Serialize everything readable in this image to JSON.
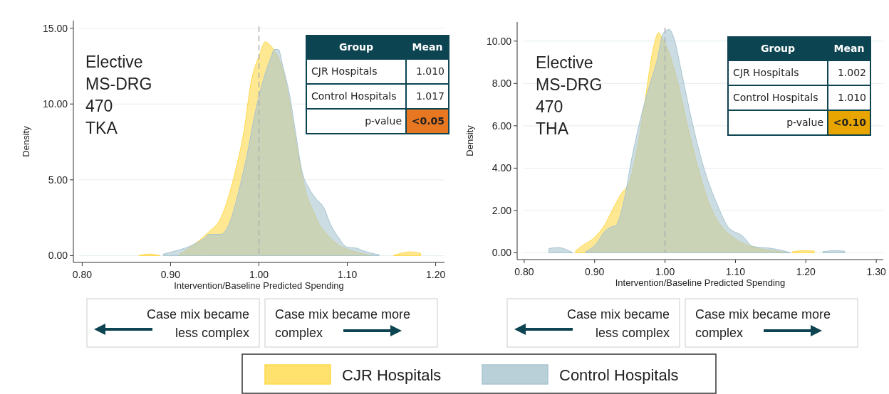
{
  "chart_data": [
    {
      "type": "area",
      "xlabel": "Intervention/Baseline Predicted Spending",
      "ylabel": "Density",
      "xlim": [
        0.79,
        1.21
      ],
      "ylim": [
        -0.45,
        15.5
      ],
      "xticks": [
        {
          "value": 0.8,
          "label": "0.80"
        },
        {
          "value": 0.9,
          "label": "0.90"
        },
        {
          "value": 1.0,
          "label": "1.00"
        },
        {
          "value": 1.1,
          "label": "1.10"
        },
        {
          "value": 1.2,
          "label": "1.20"
        }
      ],
      "yticks": [
        {
          "value": 0,
          "label": "0.00"
        },
        {
          "value": 5,
          "label": "5.00"
        },
        {
          "value": 10,
          "label": "10.00"
        },
        {
          "value": 15,
          "label": "15.00"
        }
      ],
      "grid": "y",
      "legend": "bottom",
      "ref_lines": [
        {
          "axis": "x",
          "value": 1.0,
          "color": "#b0b0b0",
          "line_style": "dashed"
        }
      ],
      "annotations": [
        "Elective MS-DRG 470 TKA",
        "Group",
        "Mean",
        "CJR Hospitals",
        "1.010",
        "Control Hospitals",
        "1.017",
        "p-value",
        "<0.05",
        "Case mix became less complex",
        "Case mix became more complex"
      ],
      "series": [
        {
          "name": "CJR Hospitals",
          "color": "#ffd94a",
          "x": [
            0.864,
            0.876,
            0.888,
            null,
            0.908,
            0.921,
            0.942,
            0.957,
            0.963,
            0.973,
            0.983,
            0.991,
            1.001,
            1.007,
            1.014,
            1.028,
            1.035,
            1.041,
            1.048,
            1.054,
            1.061,
            1.067,
            1.077,
            1.09,
            1.106,
            1.119,
            1.129,
            null,
            1.152,
            1.171,
            1.183
          ],
          "values": [
            0.0,
            0.1,
            0.0,
            null,
            0.0,
            0.5,
            1.5,
            2.5,
            3.4,
            5.5,
            8.2,
            11.4,
            13.3,
            14.1,
            13.8,
            12.0,
            10.0,
            7.8,
            5.5,
            4.0,
            3.0,
            2.2,
            1.4,
            0.7,
            0.3,
            0.1,
            0.0,
            null,
            0.0,
            0.25,
            0.15
          ]
        },
        {
          "name": "Control Hospitals",
          "color": "#a9c4d0",
          "x": [
            0.892,
            0.905,
            0.921,
            0.937,
            0.944,
            0.957,
            0.967,
            0.976,
            0.986,
            0.996,
            1.006,
            1.015,
            1.017,
            1.022,
            1.027,
            1.035,
            1.041,
            1.049,
            1.056,
            1.064,
            1.074,
            1.08,
            1.09,
            1.1,
            1.11,
            1.119,
            1.136
          ],
          "values": [
            0.1,
            0.3,
            0.6,
            1.1,
            1.4,
            1.4,
            2.2,
            4.0,
            6.5,
            9.5,
            11.8,
            13.3,
            13.6,
            13.6,
            12.5,
            10.5,
            8.3,
            5.5,
            4.5,
            3.8,
            3.1,
            2.2,
            1.2,
            0.55,
            0.5,
            0.3,
            0.05
          ]
        }
      ]
    },
    {
      "type": "area",
      "xlabel": "Intervention/Baseline Predicted Spending",
      "ylabel": "Density",
      "xlim": [
        0.79,
        1.31
      ],
      "ylim": [
        -0.32,
        10.9
      ],
      "xticks": [
        {
          "value": 0.8,
          "label": "0.80"
        },
        {
          "value": 0.9,
          "label": "0.90"
        },
        {
          "value": 1.0,
          "label": "1.00"
        },
        {
          "value": 1.1,
          "label": "1.10"
        },
        {
          "value": 1.2,
          "label": "1.20"
        },
        {
          "value": 1.3,
          "label": "1.30"
        }
      ],
      "yticks": [
        {
          "value": 0,
          "label": "0.00"
        },
        {
          "value": 2,
          "label": "2.00"
        },
        {
          "value": 4,
          "label": "4.00"
        },
        {
          "value": 6,
          "label": "6.00"
        },
        {
          "value": 8,
          "label": "8.00"
        },
        {
          "value": 10,
          "label": "10.00"
        }
      ],
      "grid": "y",
      "ref_lines": [
        {
          "axis": "x",
          "value": 1.0,
          "color": "#b0b0b0",
          "line_style": "dashed"
        }
      ],
      "annotations": [
        "Elective MS-DRG 470 THA",
        "Group",
        "Mean",
        "CJR Hospitals",
        "1.002",
        "Control Hospitals",
        "1.010",
        "p-value",
        "<0.10",
        "Case mix became less complex",
        "Case mix became more complex"
      ],
      "series": [
        {
          "color": "#ffd94a",
          "x": [
            0.873,
            0.883,
            0.899,
            0.914,
            0.928,
            0.938,
            0.95,
            0.961,
            0.973,
            0.983,
            0.991,
            0.995,
            1.004,
            1.016,
            1.032,
            1.047,
            1.063,
            1.079,
            1.094,
            1.114,
            1.134,
            1.157,
            1.177,
            null,
            1.181,
            1.196,
            1.212
          ],
          "values": [
            0.1,
            0.35,
            0.7,
            1.3,
            2.2,
            2.8,
            3.4,
            5.0,
            7.5,
            9.6,
            10.4,
            10.2,
            9.6,
            8.3,
            6.0,
            4.0,
            2.3,
            1.3,
            0.8,
            0.4,
            0.2,
            0.08,
            0.0,
            null,
            0.05,
            0.1,
            0.08
          ]
        },
        {
          "color": "#a9c4d0",
          "x": [
            0.835,
            0.848,
            0.86,
            0.869,
            null,
            0.887,
            0.903,
            0.914,
            0.922,
            0.93,
            0.942,
            0.953,
            0.965,
            0.977,
            0.988,
            0.998,
            1.006,
            1.013,
            1.023,
            1.035,
            1.047,
            1.059,
            1.074,
            1.09,
            1.11,
            1.125,
            1.153,
            1.179,
            null,
            1.224,
            1.239,
            1.255
          ],
          "values": [
            0.2,
            0.25,
            0.15,
            0.0,
            null,
            0.05,
            0.45,
            1.0,
            1.2,
            1.3,
            2.5,
            4.5,
            6.3,
            7.8,
            9.0,
            10.4,
            10.55,
            10.1,
            8.6,
            6.7,
            5.0,
            3.6,
            2.3,
            1.2,
            0.8,
            0.3,
            0.2,
            0.0,
            null,
            0.05,
            0.1,
            0.08
          ]
        }
      ]
    }
  ]
}
